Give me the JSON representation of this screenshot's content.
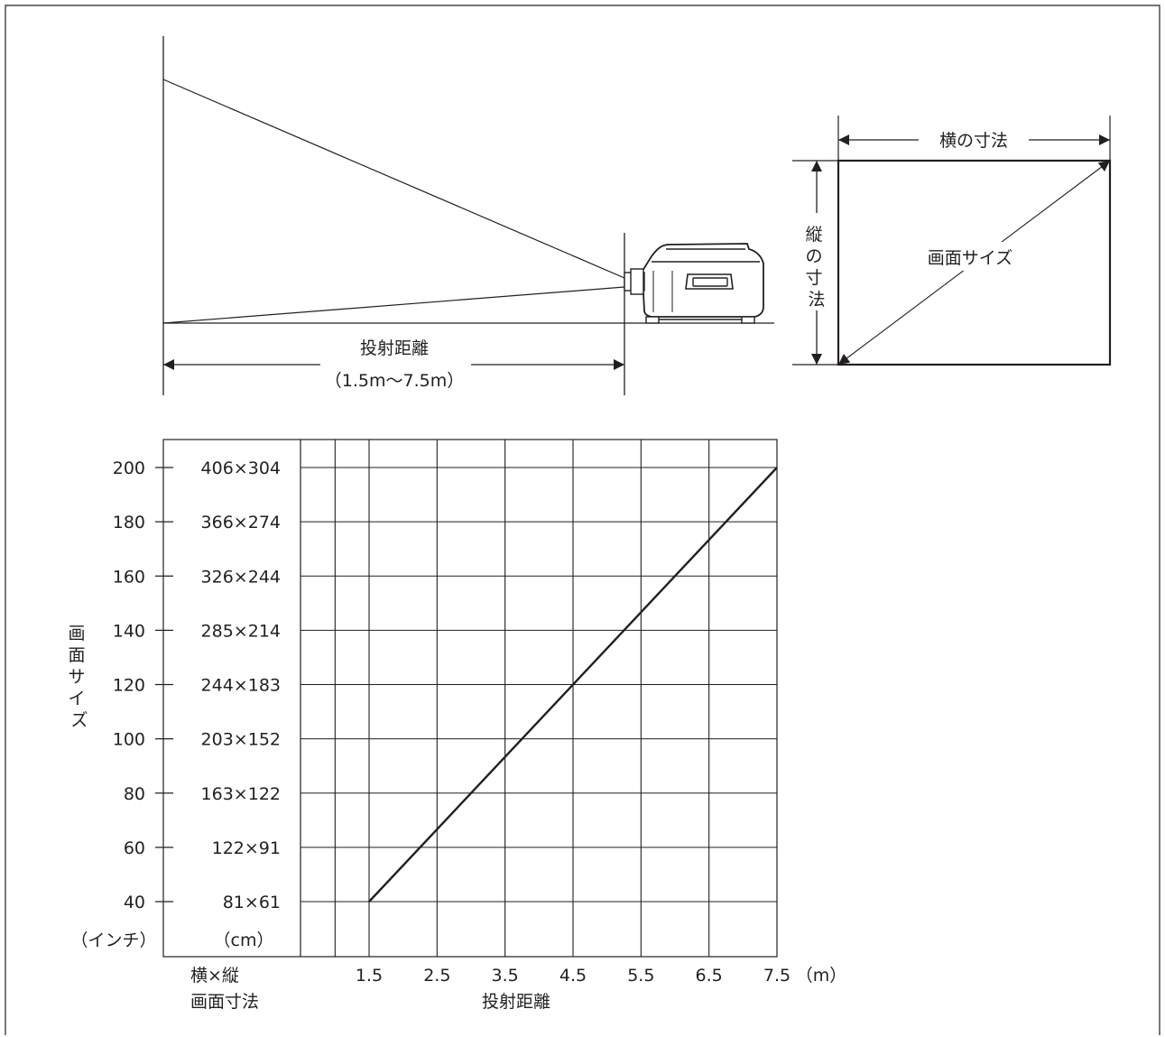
{
  "diagram": {
    "throw_distance_label": "投射距離",
    "throw_distance_range": "（1.5m〜7.5m）",
    "screen_width_label": "横の寸法",
    "screen_height_label": "縦の寸法",
    "screen_size_label": "画面サイズ"
  },
  "chart_data": {
    "type": "line",
    "xlabel": "投射距離",
    "x_unit": "（m）",
    "x_ticks": [
      "1.5",
      "2.5",
      "3.5",
      "4.5",
      "5.5",
      "6.5",
      "7.5"
    ],
    "xlim": [
      0.5,
      7.5
    ],
    "ylabel": "画面サイズ",
    "y_unit": "（インチ）",
    "y_ticks": [
      "200",
      "180",
      "160",
      "140",
      "120",
      "100",
      "80",
      "60",
      "40"
    ],
    "ylim": [
      30,
      210
    ],
    "dims_unit": "（cm）",
    "dims_label_line1": "横×縦",
    "dims_label_line2": "画面寸法",
    "dims": [
      "406×304",
      "366×274",
      "326×244",
      "285×214",
      "244×183",
      "203×152",
      "163×122",
      "122×91",
      "81×61"
    ],
    "grid": true,
    "series": [
      {
        "x": [
          1.5,
          7.5
        ],
        "y": [
          40,
          200
        ]
      }
    ]
  }
}
